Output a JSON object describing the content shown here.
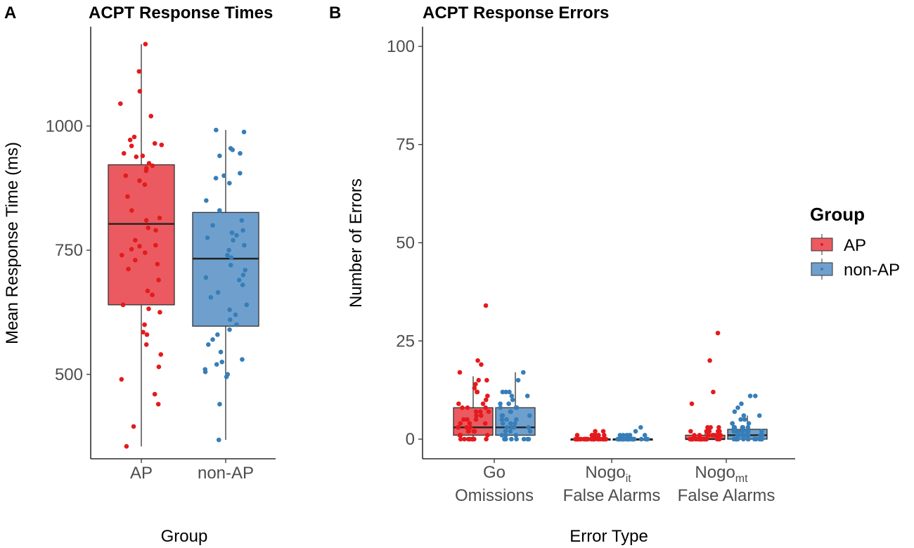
{
  "colors": {
    "AP_fill": "#eb5a60",
    "AP_point": "#e41a1c",
    "nonAP_fill": "#6fa0cd",
    "nonAP_point": "#377eb8"
  },
  "legend": {
    "title": "Group",
    "items": [
      "AP",
      "non-AP"
    ]
  },
  "panelA": {
    "tag": "A"
  },
  "panelB": {
    "tag": "B",
    "xticks": [
      {
        "line1": "Go",
        "line1_sub": "",
        "line2": "Omissions"
      },
      {
        "line1": "Nogo",
        "line1_sub": "it",
        "line2": "False Alarms"
      },
      {
        "line1": "Nogo",
        "line1_sub": "mt",
        "line2": "False Alarms"
      }
    ]
  },
  "chart_data": [
    {
      "type": "box",
      "title": "ACPT Response Times",
      "xlabel": "Group",
      "ylabel": "Mean Response Time (ms)",
      "ylim": [
        330,
        1200
      ],
      "yticks": [
        500,
        750,
        1000
      ],
      "categories": [
        "AP",
        "non-AP"
      ],
      "boxes": [
        {
          "group": "AP",
          "q1": 640,
          "median": 803,
          "q3": 922,
          "whisker_low": 355,
          "whisker_high": 1165,
          "points": [
            1165,
            1110,
            1070,
            1045,
            1020,
            978,
            972,
            965,
            962,
            960,
            945,
            940,
            938,
            925,
            920,
            915,
            910,
            900,
            890,
            882,
            858,
            830,
            815,
            810,
            795,
            790,
            770,
            760,
            758,
            752,
            745,
            740,
            730,
            722,
            712,
            690,
            668,
            660,
            640,
            632,
            625,
            600,
            585,
            580,
            560,
            540,
            515,
            490,
            460,
            440,
            395,
            355
          ]
        },
        {
          "group": "non-AP",
          "q1": 597,
          "median": 733,
          "q3": 826,
          "whisker_low": 368,
          "whisker_high": 992,
          "points": [
            992,
            988,
            955,
            952,
            945,
            940,
            905,
            900,
            895,
            885,
            850,
            830,
            810,
            800,
            790,
            785,
            780,
            775,
            770,
            760,
            750,
            740,
            735,
            720,
            710,
            700,
            695,
            690,
            680,
            665,
            655,
            640,
            630,
            620,
            610,
            600,
            590,
            580,
            570,
            560,
            545,
            530,
            525,
            520,
            510,
            505,
            500,
            495,
            440,
            368
          ]
        }
      ]
    },
    {
      "type": "box",
      "title": "ACPT Response Errors",
      "xlabel": "Error Type",
      "ylabel": "Number of Errors",
      "ylim": [
        -5,
        105
      ],
      "yticks": [
        0,
        25,
        50,
        75,
        100
      ],
      "categories": [
        "Go Omissions",
        "Nogo_it False Alarms",
        "Nogo_mt False Alarms"
      ],
      "series": [
        {
          "name": "AP",
          "boxes": [
            {
              "q1": 1,
              "median": 3,
              "q3": 8,
              "whisker_low": 0,
              "whisker_high": 16,
              "points": [
                34,
                20,
                19,
                17,
                15,
                15,
                14,
                13,
                12,
                12,
                11,
                10,
                9,
                9,
                8,
                8,
                8,
                7,
                7,
                7,
                6,
                6,
                5,
                5,
                5,
                4,
                4,
                4,
                3,
                3,
                3,
                3,
                2,
                2,
                2,
                2,
                1,
                1,
                1,
                1,
                0,
                0,
                0,
                0,
                0,
                0,
                0,
                0
              ]
            },
            {
              "q1": 0,
              "median": 0,
              "q3": 0,
              "whisker_low": 0,
              "whisker_high": 0,
              "points": [
                2,
                2,
                1,
                1,
                1,
                1,
                1,
                1,
                0,
                0,
                0,
                0,
                0,
                0,
                0,
                0,
                0,
                0,
                0,
                0,
                0,
                0,
                0,
                0,
                0,
                0,
                0,
                0,
                0,
                0,
                0,
                0,
                0,
                0,
                0,
                0,
                0,
                0,
                0,
                0
              ]
            },
            {
              "q1": 0,
              "median": 0,
              "q3": 1,
              "whisker_low": 0,
              "whisker_high": 2,
              "points": [
                27,
                20,
                12,
                9,
                3,
                3,
                3,
                2,
                2,
                2,
                2,
                2,
                2,
                1,
                1,
                1,
                1,
                1,
                1,
                1,
                1,
                1,
                1,
                0,
                0,
                0,
                0,
                0,
                0,
                0,
                0,
                0,
                0,
                0,
                0,
                0,
                0,
                0,
                0,
                0,
                0,
                0,
                0,
                0,
                0,
                0,
                0,
                0
              ]
            }
          ]
        },
        {
          "name": "non-AP",
          "boxes": [
            {
              "q1": 1,
              "median": 3,
              "q3": 8,
              "whisker_low": 0,
              "whisker_high": 17,
              "points": [
                17,
                15,
                12,
                12,
                12,
                11,
                11,
                10,
                9,
                9,
                8,
                8,
                8,
                7,
                7,
                6,
                6,
                6,
                5,
                5,
                5,
                4,
                4,
                4,
                3,
                3,
                3,
                3,
                2,
                2,
                2,
                1,
                1,
                1,
                1,
                0,
                0,
                0,
                0,
                0,
                0,
                0
              ]
            },
            {
              "q1": 0,
              "median": 0,
              "q3": 0,
              "whisker_low": 0,
              "whisker_high": 0,
              "points": [
                3,
                2,
                1,
                1,
                1,
                1,
                1,
                1,
                0,
                0,
                0,
                0,
                0,
                0,
                0,
                0,
                0,
                0,
                0,
                0,
                0,
                0,
                0,
                0,
                0,
                0,
                0,
                0,
                0,
                0,
                0,
                0,
                0,
                0,
                0,
                0,
                0,
                0,
                0,
                0
              ]
            },
            {
              "q1": 0,
              "median": 1,
              "q3": 2.5,
              "whisker_low": 0,
              "whisker_high": 6,
              "points": [
                11,
                11,
                9,
                8,
                7,
                6,
                6,
                5,
                5,
                4,
                4,
                4,
                3,
                3,
                3,
                3,
                3,
                2,
                2,
                2,
                2,
                2,
                2,
                2,
                1,
                1,
                1,
                1,
                1,
                1,
                1,
                1,
                1,
                0,
                0,
                0,
                0,
                0,
                0,
                0,
                0,
                0,
                0,
                0,
                0,
                0,
                0
              ]
            }
          ]
        }
      ]
    }
  ]
}
